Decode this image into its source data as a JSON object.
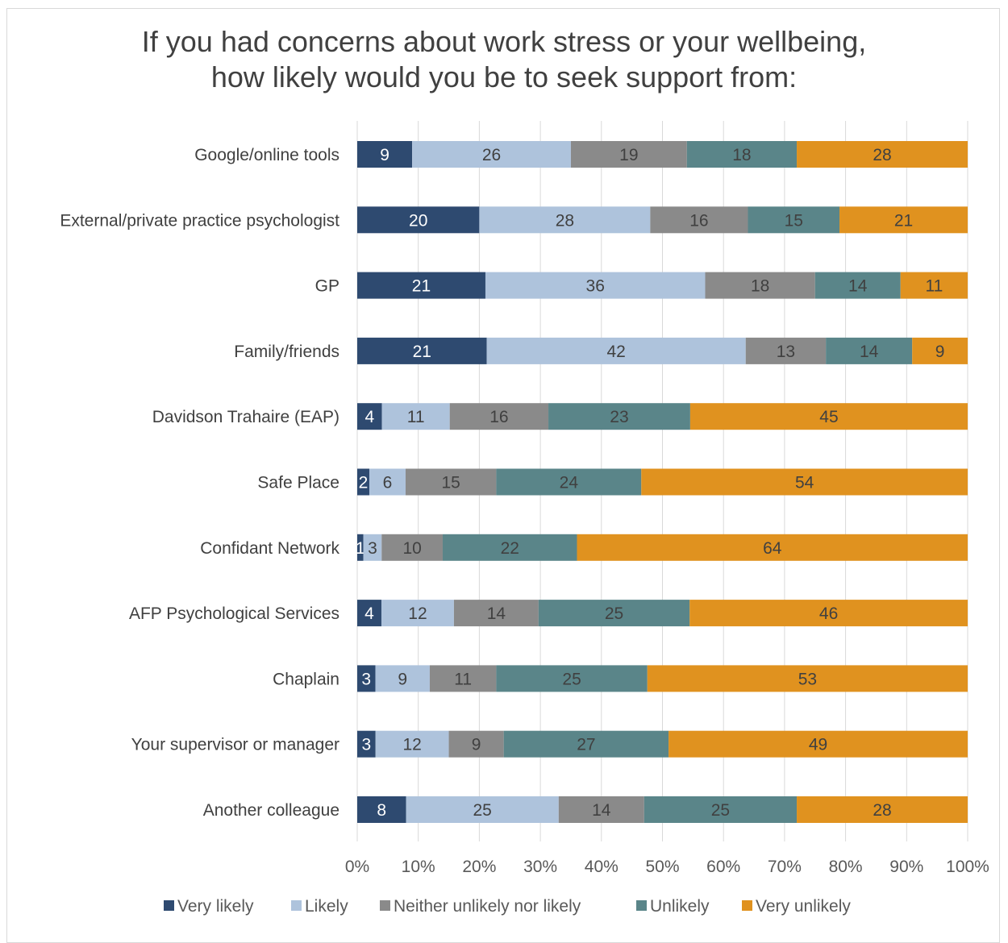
{
  "chart_data": {
    "type": "bar",
    "orientation": "horizontal",
    "stacked": "percent",
    "title_lines": [
      "If you had concerns about work stress or your wellbeing,",
      "how likely would you be to seek support from:"
    ],
    "categories": [
      "Google/online tools",
      "External/private practice psychologist",
      "GP",
      "Family/friends",
      "Davidson Trahaire (EAP)",
      "Safe Place",
      "Confidant Network",
      "AFP Psychological Services",
      "Chaplain",
      "Your supervisor or manager",
      "Another colleague"
    ],
    "series": [
      {
        "name": "Very likely",
        "color": "#2e4a70",
        "label_color": "#ffffff",
        "values": [
          9,
          20,
          21,
          21,
          4,
          2,
          1,
          4,
          3,
          3,
          8
        ]
      },
      {
        "name": "Likely",
        "color": "#aec3dc",
        "label_color": "#404040",
        "values": [
          26,
          28,
          36,
          42,
          11,
          6,
          3,
          12,
          9,
          12,
          25
        ]
      },
      {
        "name": "Neither unlikely nor likely",
        "color": "#8a8a8a",
        "label_color": "#404040",
        "values": [
          19,
          16,
          18,
          13,
          16,
          15,
          10,
          14,
          11,
          9,
          14
        ]
      },
      {
        "name": "Unlikely",
        "color": "#5a8589",
        "label_color": "#404040",
        "values": [
          18,
          15,
          14,
          14,
          23,
          24,
          22,
          25,
          25,
          27,
          25
        ]
      },
      {
        "name": "Very unlikely",
        "color": "#e0921f",
        "label_color": "#404040",
        "values": [
          28,
          21,
          11,
          9,
          45,
          54,
          64,
          46,
          53,
          49,
          28
        ]
      }
    ],
    "xaxis_ticks": [
      "0%",
      "10%",
      "20%",
      "30%",
      "40%",
      "50%",
      "60%",
      "70%",
      "80%",
      "90%",
      "100%"
    ],
    "xlim": [
      0,
      100
    ],
    "grid": true,
    "legend_position": "bottom"
  }
}
